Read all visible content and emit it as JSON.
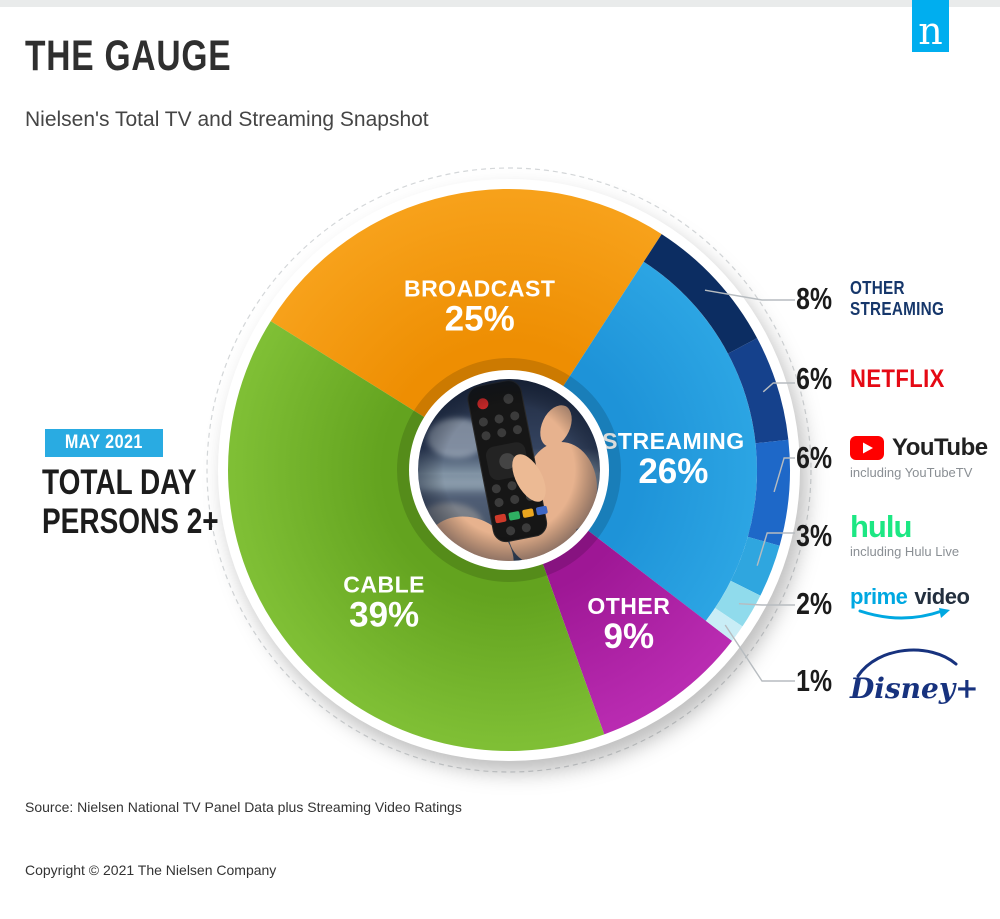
{
  "page": {
    "title": "THE GAUGE",
    "subtitle": "Nielsen's Total TV and Streaming Snapshot",
    "logo_letter": "n",
    "source": "Source: Nielsen National TV Panel Data plus Streaming Video Ratings",
    "copyright": "Copyright © 2021 The Nielsen Company"
  },
  "annotation": {
    "period": "MAY 2021",
    "audience_line1": "TOTAL DAY",
    "audience_line2": "PERSONS 2+"
  },
  "legend": {
    "items": [
      {
        "pct": "8%",
        "line1": "OTHER",
        "line2": "STREAMING"
      },
      {
        "pct": "6%",
        "brand": "NETFLIX"
      },
      {
        "pct": "6%",
        "brand": "YouTube",
        "sub": "including YouTubeTV"
      },
      {
        "pct": "3%",
        "brand": "hulu",
        "sub": "including Hulu Live"
      },
      {
        "pct": "2%",
        "brand_a": "prime",
        "brand_b": "video"
      },
      {
        "pct": "1%",
        "brand": "Disney+"
      }
    ]
  },
  "brand_colors": {
    "nielsen_blue": "#00AEEF",
    "badge_blue": "#29ABE2",
    "other_streaming_navy": "#16376B",
    "netflix_red": "#E50914",
    "youtube_red": "#FF0000",
    "hulu_green": "#1CE783",
    "prime_blue": "#00A8E1",
    "prime_dark": "#232F3E",
    "disney_navy": "#17327E"
  },
  "chart_data": {
    "type": "pie",
    "title": "THE GAUGE",
    "subtitle": "Nielsen's Total TV and Streaming Snapshot",
    "period": "MAY 2021",
    "audience": "TOTAL DAY PERSONS 2+",
    "units": "share of total TV time, %",
    "start_angle_deg": -58,
    "breakdown_parent": "STREAMING",
    "segments": [
      {
        "label": "BROADCAST",
        "value": 25,
        "color": "#F7A11A",
        "color_inner": "#EE8E02"
      },
      {
        "label": "STREAMING",
        "value": 26,
        "color": "#2FA9E6",
        "color_inner": "#1E93D8"
      },
      {
        "label": "OTHER",
        "value": 9,
        "color": "#B92BB1",
        "color_inner": "#9E1795"
      },
      {
        "label": "CABLE",
        "value": 39,
        "color": "#7FBF35",
        "color_inner": "#63A31F"
      }
    ],
    "streaming_breakdown": [
      {
        "label": "OTHER STREAMING",
        "value": 8,
        "color": "#0C2D62"
      },
      {
        "label": "NETFLIX",
        "value": 6,
        "color": "#15418C"
      },
      {
        "label": "YOUTUBE",
        "value": 6,
        "color": "#1E68C8"
      },
      {
        "label": "HULU",
        "value": 3,
        "color": "#2FA6DF"
      },
      {
        "label": "PRIME VIDEO",
        "value": 2,
        "color": "#90DBEC"
      },
      {
        "label": "DISNEY+",
        "value": 1,
        "color": "#C9EDF6"
      }
    ]
  }
}
